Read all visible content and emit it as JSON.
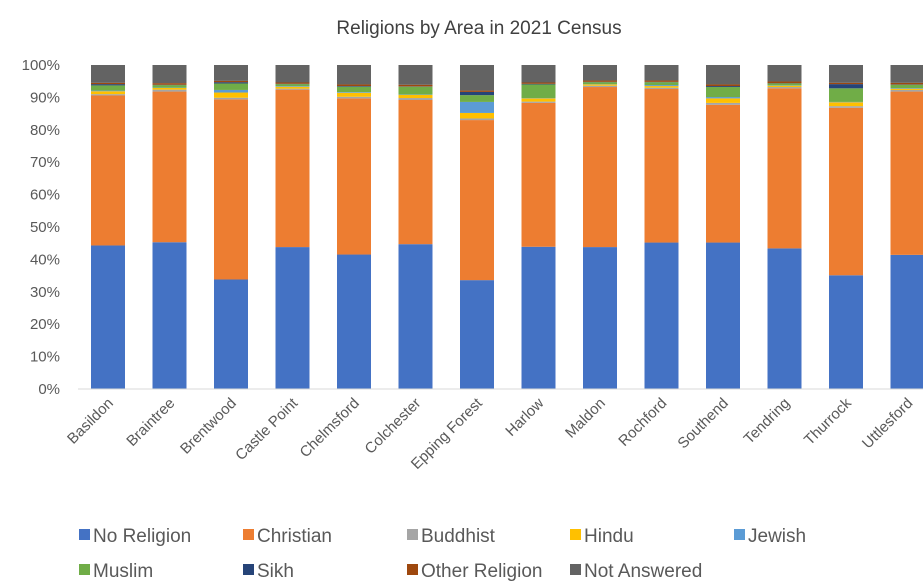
{
  "chart_data": {
    "type": "bar",
    "stacked": true,
    "title": "Religions by Area in 2021 Census",
    "ylim": [
      0,
      100
    ],
    "yticks": [
      "0%",
      "10%",
      "20%",
      "30%",
      "40%",
      "50%",
      "60%",
      "70%",
      "80%",
      "90%",
      "100%"
    ],
    "categories": [
      "Basildon",
      "Braintree",
      "Brentwood",
      "Castle Point",
      "Chelmsford",
      "Colchester",
      "Epping Forest",
      "Harlow",
      "Maldon",
      "Rochford",
      "Southend",
      "Tendring",
      "Thurrock",
      "Uttlesford"
    ],
    "series": [
      {
        "name": "No Religion",
        "color": "#4472C4",
        "values": [
          44.3,
          45.3,
          33.8,
          43.8,
          41.5,
          44.7,
          33.6,
          43.9,
          43.8,
          45.2,
          45.2,
          43.4,
          35.1,
          41.4
        ]
      },
      {
        "name": "Christian",
        "color": "#ED7D31",
        "values": [
          46.3,
          46.5,
          55.6,
          48.6,
          48.2,
          44.5,
          49.4,
          44.4,
          49.4,
          47.4,
          42.5,
          49.4,
          51.7,
          50.4
        ]
      },
      {
        "name": "Buddhist",
        "color": "#A5A5A5",
        "values": [
          0.4,
          0.6,
          0.5,
          0.3,
          0.5,
          0.6,
          0.5,
          0.4,
          0.4,
          0.4,
          0.6,
          0.4,
          0.5,
          0.5
        ]
      },
      {
        "name": "Hindu",
        "color": "#FFC000",
        "values": [
          0.9,
          0.5,
          1.6,
          0.6,
          1.2,
          1.0,
          1.7,
          1.0,
          0.4,
          0.5,
          1.4,
          0.4,
          1.2,
          0.4
        ]
      },
      {
        "name": "Jewish",
        "color": "#5B9BD5",
        "values": [
          0.2,
          0.1,
          0.8,
          0.2,
          0.2,
          0.1,
          3.4,
          0.1,
          0.1,
          0.3,
          0.4,
          0.1,
          0.1,
          0.2
        ]
      },
      {
        "name": "Muslim",
        "color": "#70AD47",
        "values": [
          1.6,
          0.8,
          2.0,
          0.6,
          1.7,
          2.4,
          2.1,
          4.2,
          0.6,
          0.9,
          3.1,
          0.6,
          4.2,
          1.0
        ]
      },
      {
        "name": "Sikh",
        "color": "#264478",
        "values": [
          0.4,
          0.1,
          0.4,
          0.1,
          0.2,
          0.1,
          1.0,
          0.2,
          0.1,
          0.1,
          0.3,
          0.1,
          1.3,
          0.1
        ]
      },
      {
        "name": "Other Religion",
        "color": "#9E480E",
        "values": [
          0.4,
          0.5,
          0.4,
          0.4,
          0.5,
          0.5,
          0.4,
          0.4,
          0.4,
          0.4,
          0.5,
          0.5,
          0.4,
          0.5
        ]
      },
      {
        "name": "Not Answered",
        "color": "#636363",
        "values": [
          5.5,
          5.6,
          4.9,
          5.4,
          6.0,
          6.1,
          7.9,
          5.4,
          4.8,
          4.8,
          6.0,
          5.1,
          5.5,
          5.5
        ]
      }
    ],
    "grid": false,
    "legend": "bottom"
  }
}
